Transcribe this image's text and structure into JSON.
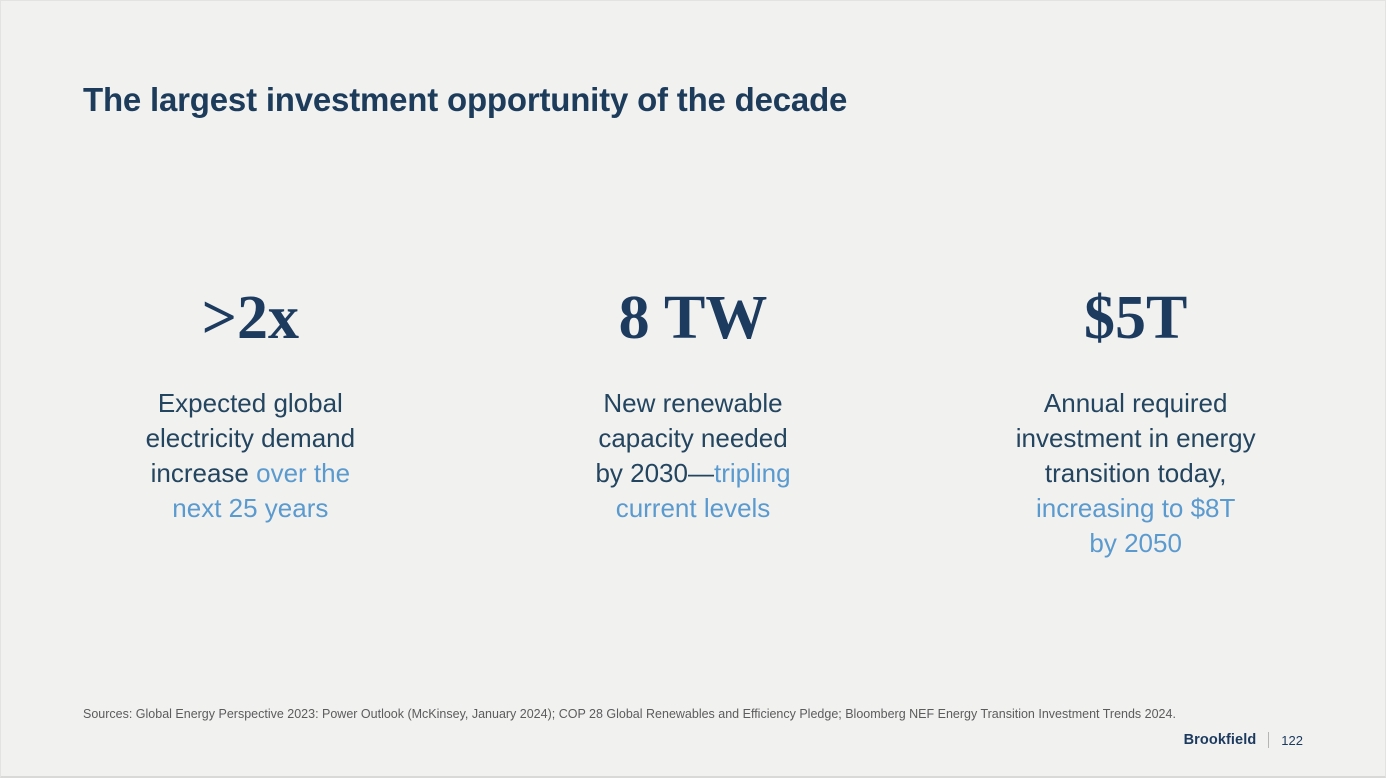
{
  "slide": {
    "title": "The largest investment opportunity of the decade",
    "stats": [
      {
        "value": ">2x",
        "description_dark": "Expected global\nelectricity demand\nincrease ",
        "description_accent": "over the\nnext 25 years"
      },
      {
        "value": "8 TW",
        "description_dark": "New renewable\ncapacity needed\nby 2030—",
        "description_accent": "tripling\ncurrent levels"
      },
      {
        "value": "$5T",
        "description_dark": "Annual required\ninvestment in energy\ntransition today,",
        "description_accent": "\nincreasing to $8T\nby 2050"
      }
    ],
    "sources": "Sources: Global Energy Perspective 2023: Power Outlook (McKinsey, January 2024); COP 28 Global Renewables and Efficiency Pledge; Bloomberg NEF Energy Transition Investment Trends 2024.",
    "footer": {
      "brand": "Brookfield",
      "page_number": "122"
    },
    "colors": {
      "background": "#f1f1f0",
      "navy_dark": "#1d3c5b",
      "accent_blue": "#5b9ace",
      "source_gray": "#5c5c5c",
      "divider_gray": "#b5b5b5"
    }
  }
}
